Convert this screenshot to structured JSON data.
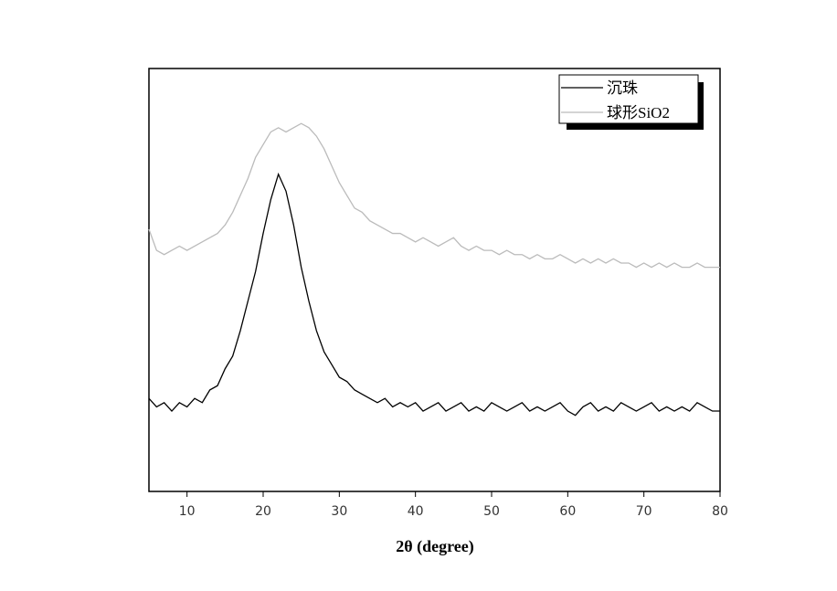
{
  "chart_data": {
    "type": "line",
    "xlabel": "2θ (degree)",
    "x": [
      5,
      6,
      7,
      8,
      9,
      10,
      11,
      12,
      13,
      14,
      15,
      16,
      17,
      18,
      19,
      20,
      21,
      22,
      23,
      24,
      25,
      26,
      27,
      28,
      29,
      30,
      31,
      32,
      33,
      34,
      35,
      36,
      37,
      38,
      39,
      40,
      41,
      42,
      43,
      44,
      45,
      46,
      47,
      48,
      49,
      50,
      51,
      52,
      53,
      54,
      55,
      56,
      57,
      58,
      59,
      60,
      61,
      62,
      63,
      64,
      65,
      66,
      67,
      68,
      69,
      70,
      71,
      72,
      73,
      74,
      75,
      76,
      77,
      78,
      79,
      80
    ],
    "series": [
      {
        "name": "沉珠",
        "color": "#000000",
        "values": [
          22,
          20,
          21,
          19,
          21,
          20,
          22,
          21,
          24,
          25,
          29,
          32,
          38,
          45,
          52,
          61,
          69,
          75,
          71,
          63,
          53,
          45,
          38,
          33,
          30,
          27,
          26,
          24,
          23,
          22,
          21,
          22,
          20,
          21,
          20,
          21,
          19,
          20,
          21,
          19,
          20,
          21,
          19,
          20,
          19,
          21,
          20,
          19,
          20,
          21,
          19,
          20,
          19,
          20,
          21,
          19,
          18,
          20,
          21,
          19,
          20,
          19,
          21,
          20,
          19,
          20,
          21,
          19,
          20,
          19,
          20,
          19,
          21,
          20,
          19,
          19
        ]
      },
      {
        "name": "球形SiO2",
        "color": "#bbbbbb",
        "values": [
          62,
          57,
          56,
          57,
          58,
          57,
          58,
          59,
          60,
          61,
          63,
          66,
          70,
          74,
          79,
          82,
          85,
          86,
          85,
          86,
          87,
          86,
          84,
          81,
          77,
          73,
          70,
          67,
          66,
          64,
          63,
          62,
          61,
          61,
          60,
          59,
          60,
          59,
          58,
          59,
          60,
          58,
          57,
          58,
          57,
          57,
          56,
          57,
          56,
          56,
          55,
          56,
          55,
          55,
          56,
          55,
          54,
          55,
          54,
          55,
          54,
          55,
          54,
          54,
          53,
          54,
          53,
          54,
          53,
          54,
          53,
          53,
          54,
          53,
          53,
          53
        ]
      }
    ],
    "xlim": [
      5,
      80
    ],
    "xticks": [
      10,
      20,
      30,
      40,
      50,
      60,
      70,
      80
    ],
    "ylim": [
      0,
      100
    ]
  }
}
